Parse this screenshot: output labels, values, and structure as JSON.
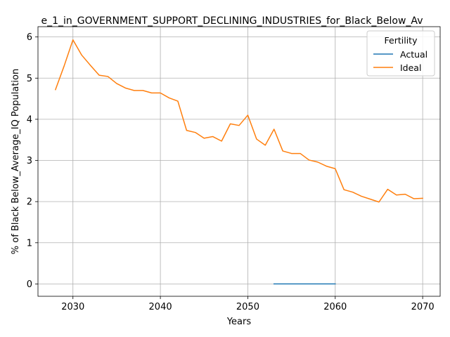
{
  "chart_data": {
    "type": "line",
    "title": "e_1_in_GOVERNMENT_SUPPORT_DECLINING_INDUSTRIES_for_Black_Below_Av",
    "xlabel": "Years",
    "ylabel": "% of Black Below_Average_IQ Population",
    "xlim": [
      2026,
      2072
    ],
    "ylim": [
      -0.3,
      6.25
    ],
    "xticks": [
      2030,
      2040,
      2050,
      2060,
      2070
    ],
    "yticks": [
      0,
      1,
      2,
      3,
      4,
      5,
      6
    ],
    "grid": true,
    "legend": {
      "title": "Fertility",
      "placement": "top-right"
    },
    "series": [
      {
        "name": "Actual",
        "color": "#1f77b4",
        "x": [
          2053,
          2054,
          2055,
          2056,
          2057,
          2058,
          2059,
          2060
        ],
        "y": [
          0,
          0,
          0,
          0,
          0,
          0,
          0,
          0
        ]
      },
      {
        "name": "Ideal",
        "color": "#ff7f0e",
        "x": [
          2028,
          2029,
          2030,
          2031,
          2032,
          2033,
          2034,
          2035,
          2036,
          2037,
          2038,
          2039,
          2040,
          2041,
          2042,
          2043,
          2044,
          2045,
          2046,
          2047,
          2048,
          2049,
          2050,
          2051,
          2052,
          2053,
          2054,
          2055,
          2056,
          2057,
          2058,
          2059,
          2060,
          2061,
          2062,
          2063,
          2064,
          2065,
          2066,
          2067,
          2068,
          2069,
          2070
        ],
        "y": [
          4.72,
          5.3,
          5.93,
          5.56,
          5.31,
          5.07,
          5.04,
          4.87,
          4.76,
          4.7,
          4.7,
          4.64,
          4.64,
          4.52,
          4.44,
          3.73,
          3.68,
          3.54,
          3.58,
          3.47,
          3.89,
          3.85,
          4.1,
          3.52,
          3.37,
          3.76,
          3.23,
          3.17,
          3.17,
          3.01,
          2.96,
          2.86,
          2.8,
          2.29,
          2.23,
          2.13,
          2.06,
          1.99,
          2.3,
          2.16,
          2.18,
          2.07,
          2.08
        ]
      }
    ]
  }
}
